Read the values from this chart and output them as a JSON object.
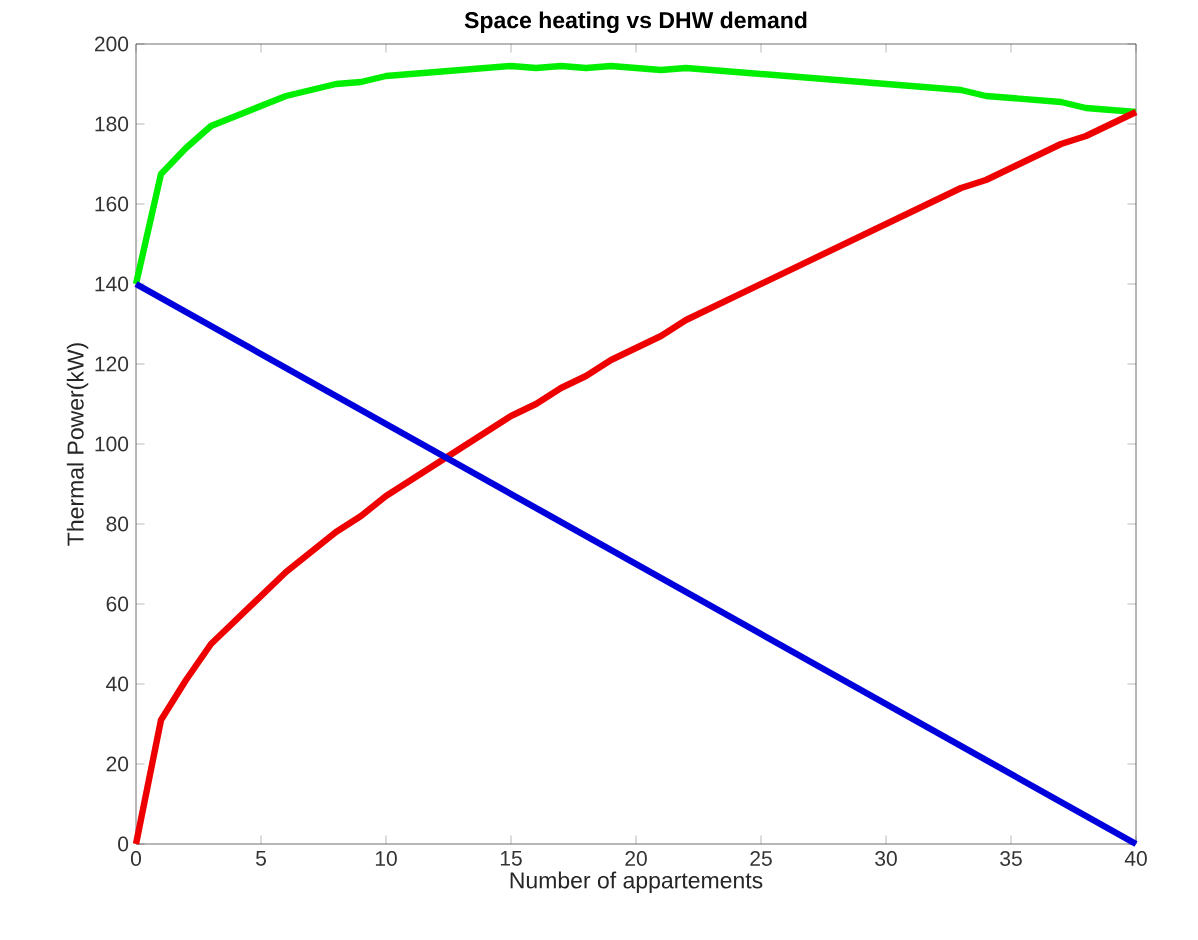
{
  "chart_data": {
    "type": "line",
    "title": "Space heating vs DHW demand",
    "xlabel": "Number of appartements",
    "ylabel": "Thermal Power(kW)",
    "xlim": [
      0,
      40
    ],
    "ylim": [
      0,
      200
    ],
    "xticks": [
      0,
      5,
      10,
      15,
      20,
      25,
      30,
      35,
      40
    ],
    "yticks": [
      0,
      20,
      40,
      60,
      80,
      100,
      120,
      140,
      160,
      180,
      200
    ],
    "grid": false,
    "marker": "none",
    "line_style": "solid",
    "series": [
      {
        "color": "#00ee00",
        "x": [
          0,
          1,
          2,
          3,
          4,
          5,
          6,
          7,
          8,
          9,
          10,
          11,
          12,
          13,
          14,
          15,
          16,
          17,
          18,
          19,
          20,
          21,
          22,
          23,
          24,
          25,
          26,
          27,
          28,
          29,
          30,
          31,
          32,
          33,
          34,
          35,
          36,
          37,
          38,
          39,
          40
        ],
        "values": [
          140,
          167.5,
          174,
          179.5,
          182,
          184.5,
          187,
          188.5,
          190,
          190.5,
          192,
          192.5,
          193,
          193.5,
          194,
          194.5,
          194,
          194.5,
          194,
          194.5,
          194,
          193.5,
          194,
          193.5,
          193,
          192.5,
          192,
          191.5,
          191,
          190.5,
          190,
          189.5,
          189,
          188.5,
          187,
          186.5,
          186,
          185.5,
          184,
          183.5,
          183
        ]
      },
      {
        "color": "#ee0000",
        "x": [
          0,
          1,
          2,
          3,
          4,
          5,
          6,
          7,
          8,
          9,
          10,
          11,
          12,
          13,
          14,
          15,
          16,
          17,
          18,
          19,
          20,
          21,
          22,
          23,
          24,
          25,
          26,
          27,
          28,
          29,
          30,
          31,
          32,
          33,
          34,
          35,
          36,
          37,
          38,
          39,
          40
        ],
        "values": [
          0,
          31,
          41,
          50,
          56,
          62,
          68,
          73,
          78,
          82,
          87,
          91,
          95,
          99,
          103,
          107,
          110,
          114,
          117,
          121,
          124,
          127,
          131,
          134,
          137,
          140,
          143,
          146,
          149,
          152,
          155,
          158,
          161,
          164,
          166,
          169,
          172,
          175,
          177,
          180,
          183
        ]
      },
      {
        "color": "#0000dd",
        "x": [
          0,
          40
        ],
        "values": [
          140,
          0
        ]
      }
    ]
  }
}
